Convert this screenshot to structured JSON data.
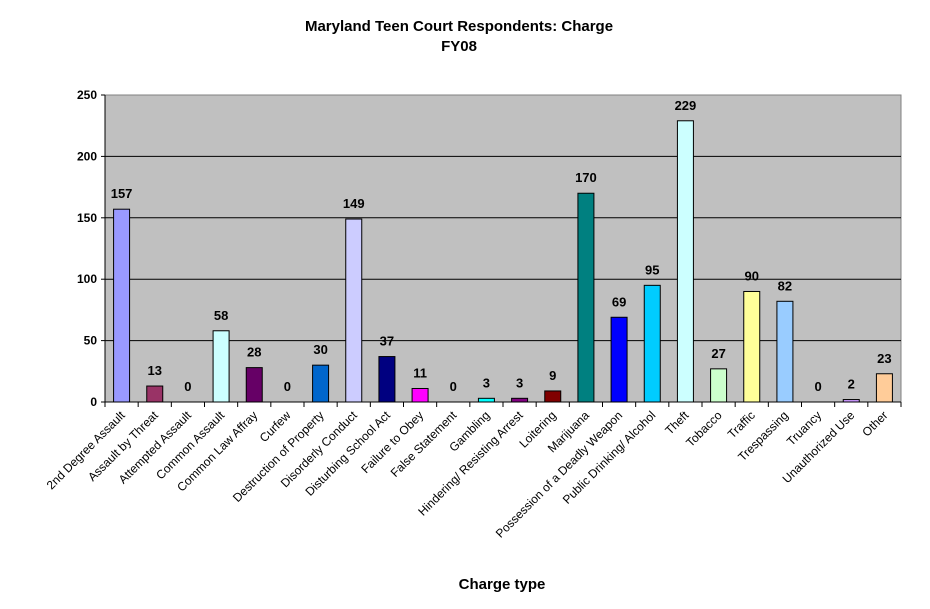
{
  "chart_data": {
    "type": "bar",
    "title": "Maryland Teen Court Respondents: Charge",
    "subtitle": "FY08",
    "xlabel": "Charge type",
    "ylabel": "",
    "ylim": [
      0,
      250
    ],
    "yticks": [
      0,
      50,
      100,
      150,
      200,
      250
    ],
    "grid": true,
    "legend": "none",
    "plot_background": "#C0C0C0",
    "categories": [
      "2nd Degree Assault",
      "Assault by Threat",
      "Attempted Assault",
      "Common Assault",
      "Common Law Affray",
      "Curfew",
      "Destruction of Property",
      "Disorderly Conduct",
      "Disturbing School Act",
      "Failure to Obey",
      "False Statement",
      "Gambling",
      "Hindering/ Resisting Arrest",
      "Loitering",
      "Marijuana",
      "Possession of a Deadly Weapon",
      "Public Drinking/ Alcohol",
      "Theft",
      "Tobacco",
      "Traffic",
      "Trespassing",
      "Truancy",
      "Unauthorized Use",
      "Other"
    ],
    "values": [
      157,
      13,
      0,
      58,
      28,
      0,
      30,
      149,
      37,
      11,
      0,
      3,
      3,
      9,
      170,
      69,
      95,
      229,
      27,
      90,
      82,
      0,
      2,
      23
    ],
    "colors": [
      "#9999FF",
      "#993366",
      "#FFFFCC",
      "#CCFFFF",
      "#660066",
      "#FF8080",
      "#0066CC",
      "#CCCCFF",
      "#000080",
      "#FF00FF",
      "#FFFF00",
      "#00FFFF",
      "#800080",
      "#800000",
      "#008080",
      "#0000FF",
      "#00CCFF",
      "#CCFFFF",
      "#CCFFCC",
      "#FFFF99",
      "#99CCFF",
      "#FF99CC",
      "#CC99FF",
      "#FFCC99"
    ]
  }
}
